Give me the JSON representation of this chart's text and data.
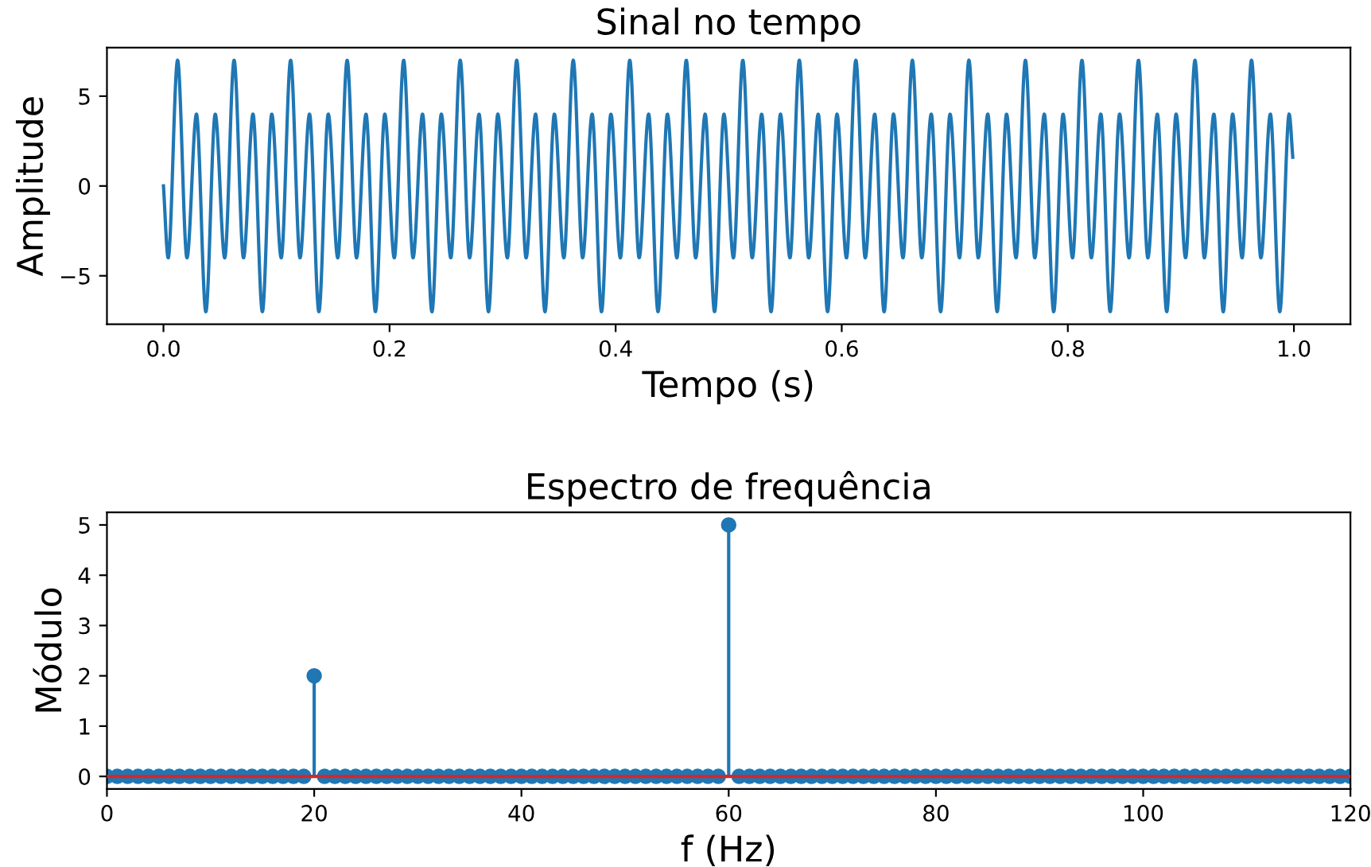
{
  "chart_data": [
    {
      "type": "line",
      "title": "Sinal no tempo",
      "xlabel": "Tempo (s)",
      "ylabel": "Amplitude",
      "xlim": [
        -0.05,
        1.05
      ],
      "xticks": [
        {
          "value": 0,
          "label": "0.0"
        },
        0.2,
        0.4,
        0.6,
        0.8,
        {
          "value": 1,
          "label": "1.0"
        }
      ],
      "ylim": [
        -7.7,
        7.7
      ],
      "yticks": [
        {
          "value": -5,
          "label": "−5"
        },
        0,
        5
      ],
      "grid": false,
      "series": [
        {
          "color": "#1f77b4",
          "x": [
            0,
            0.0042,
            0.0125,
            0.0208,
            0.0292,
            0.0375,
            0.0458,
            0.0542,
            0.0625,
            0.0708,
            0.0792,
            0.0875,
            0.0958,
            0.1042,
            0.1125,
            0.1208,
            0.1292,
            0.1375,
            0.1458,
            0.1542,
            0.1625,
            0.1708,
            0.1792,
            0.1875,
            0.1958,
            0.2042,
            0.2125,
            0.2208,
            0.2292,
            0.2375,
            0.2458,
            0.2542,
            0.2625,
            0.2708,
            0.2792,
            0.2875,
            0.2958,
            0.3042,
            0.3125,
            0.3208,
            0.3292,
            0.3375,
            0.3458,
            0.3542,
            0.3625,
            0.3708,
            0.3792,
            0.3875,
            0.3958,
            0.4042,
            0.4125,
            0.4208,
            0.4292,
            0.4375,
            0.4458,
            0.4542,
            0.4625,
            0.4708,
            0.4792,
            0.4875,
            0.4958,
            0.5042,
            0.5125,
            0.5208,
            0.5292,
            0.5375,
            0.5458,
            0.5542,
            0.5625,
            0.5708,
            0.5792,
            0.5875,
            0.5958,
            0.6042,
            0.6125,
            0.6208,
            0.6292,
            0.6375,
            0.6458,
            0.6542,
            0.6625,
            0.6708,
            0.6792,
            0.6875,
            0.6958,
            0.7042,
            0.7125,
            0.7208,
            0.7292,
            0.7375,
            0.7458,
            0.7542,
            0.7625,
            0.7708,
            0.7792,
            0.7875,
            0.7958,
            0.8042,
            0.8125,
            0.8208,
            0.8292,
            0.8375,
            0.8458,
            0.8542,
            0.8625,
            0.8708,
            0.8792,
            0.8875,
            0.8958,
            0.9042,
            0.9125,
            0.9208,
            0.9292,
            0.9375,
            0.9458,
            0.9542,
            0.9625,
            0.9708,
            0.9792,
            0.9875,
            0.9958,
            0.999
          ],
          "values": [
            0,
            -4,
            7,
            -4,
            4,
            -7,
            4,
            -4,
            7,
            -4,
            4,
            -7,
            4,
            -4,
            7,
            -4,
            4,
            -7,
            4,
            -4,
            7,
            -4,
            4,
            -7,
            4,
            -4,
            7,
            -4,
            4,
            -7,
            4,
            -4,
            7,
            -4,
            4,
            -7,
            4,
            -4,
            7,
            -4,
            4,
            -7,
            4,
            -4,
            7,
            -4,
            4,
            -7,
            4,
            -4,
            7,
            -4,
            4,
            -7,
            4,
            -4,
            7,
            -4,
            4,
            -7,
            4,
            -4,
            7,
            -4,
            4,
            -7,
            4,
            -4,
            7,
            -4,
            4,
            -7,
            4,
            -4,
            7,
            -4,
            4,
            -7,
            4,
            -4,
            7,
            -4,
            4,
            -7,
            4,
            -4,
            7,
            -4,
            4,
            -7,
            4,
            -4,
            7,
            -4,
            4,
            -7,
            4,
            -4,
            7,
            -4,
            4,
            -7,
            4,
            -4,
            7,
            -4,
            4,
            -7,
            4,
            -4,
            7,
            -4,
            4,
            -7,
            4,
            -4,
            7,
            -4,
            4,
            -7,
            4,
            1.6
          ]
        }
      ]
    },
    {
      "type": "lollipop",
      "title": "Espectro de frequência",
      "xlabel": "f (Hz)",
      "ylabel": "Módulo",
      "xlim": [
        0,
        120
      ],
      "xticks": [
        0,
        20,
        40,
        60,
        80,
        100,
        120
      ],
      "ylim": [
        -0.25,
        5.25
      ],
      "yticks": [
        0,
        1,
        2,
        3,
        4,
        5
      ],
      "grid": false,
      "marker": "circle",
      "ref_lines": [
        {
          "axis": "y",
          "value": 0,
          "color": "#d62728"
        }
      ],
      "series": [
        {
          "color": "#1f77b4",
          "x": [
            0,
            1,
            2,
            3,
            4,
            5,
            6,
            7,
            8,
            9,
            10,
            11,
            12,
            13,
            14,
            15,
            16,
            17,
            18,
            19,
            20,
            21,
            22,
            23,
            24,
            25,
            26,
            27,
            28,
            29,
            30,
            31,
            32,
            33,
            34,
            35,
            36,
            37,
            38,
            39,
            40,
            41,
            42,
            43,
            44,
            45,
            46,
            47,
            48,
            49,
            50,
            51,
            52,
            53,
            54,
            55,
            56,
            57,
            58,
            59,
            60,
            61,
            62,
            63,
            64,
            65,
            66,
            67,
            68,
            69,
            70,
            71,
            72,
            73,
            74,
            75,
            76,
            77,
            78,
            79,
            80,
            81,
            82,
            83,
            84,
            85,
            86,
            87,
            88,
            89,
            90,
            91,
            92,
            93,
            94,
            95,
            96,
            97,
            98,
            99,
            100,
            101,
            102,
            103,
            104,
            105,
            106,
            107,
            108,
            109,
            110,
            111,
            112,
            113,
            114,
            115,
            116,
            117,
            118,
            119,
            120
          ],
          "values": [
            0,
            0,
            0,
            0,
            0,
            0,
            0,
            0,
            0,
            0,
            0,
            0,
            0,
            0,
            0,
            0,
            0,
            0,
            0,
            0,
            2,
            0,
            0,
            0,
            0,
            0,
            0,
            0,
            0,
            0,
            0,
            0,
            0,
            0,
            0,
            0,
            0,
            0,
            0,
            0,
            0,
            0,
            0,
            0,
            0,
            0,
            0,
            0,
            0,
            0,
            0,
            0,
            0,
            0,
            0,
            0,
            0,
            0,
            0,
            0,
            5,
            0,
            0,
            0,
            0,
            0,
            0,
            0,
            0,
            0,
            0,
            0,
            0,
            0,
            0,
            0,
            0,
            0,
            0,
            0,
            0,
            0,
            0,
            0,
            0,
            0,
            0,
            0,
            0,
            0,
            0,
            0,
            0,
            0,
            0,
            0,
            0,
            0,
            0,
            0,
            0,
            0,
            0,
            0,
            0,
            0,
            0,
            0,
            0,
            0,
            0,
            0,
            0,
            0,
            0,
            0,
            0,
            0,
            0,
            0,
            0
          ]
        }
      ]
    }
  ]
}
